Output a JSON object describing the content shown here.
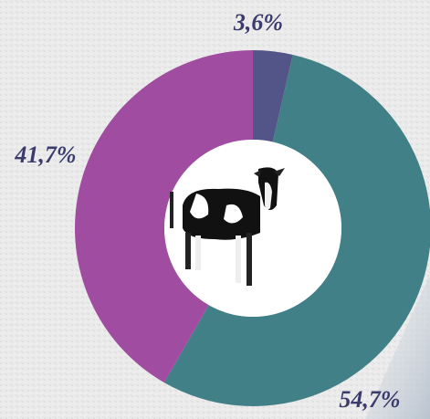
{
  "chart_data": {
    "type": "donut",
    "values": [
      3.6,
      54.7,
      41.7
    ],
    "value_labels": [
      "3,6%",
      "54,7%",
      "41,7%"
    ],
    "colors": [
      "#535589",
      "#428087",
      "#a04ca0"
    ]
  }
}
